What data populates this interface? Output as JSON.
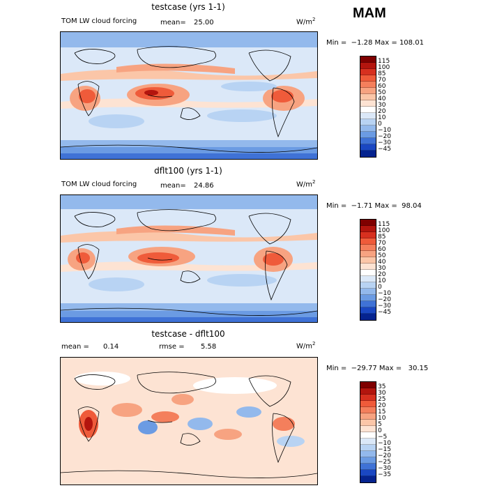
{
  "season": "MAM",
  "panels": [
    {
      "title": "testcase (yrs 1-1)",
      "var_label": "TOM LW cloud forcing",
      "stat1_label": "mean=",
      "stat1_value": "25.00",
      "units": "W/m",
      "units_exp": "2",
      "min_label": "Min =",
      "min_value": "−1.28",
      "max_label": "Max =",
      "max_value": "108.01",
      "colorbar_levels": [
        "115",
        "100",
        "85",
        "70",
        "60",
        "50",
        "40",
        "30",
        "20",
        "10",
        "0",
        "−10",
        "−20",
        "−30",
        "−45"
      ],
      "colorbar_colors": [
        "#7f0000",
        "#b3150e",
        "#d7301f",
        "#ef5b3a",
        "#f47f5c",
        "#f7a381",
        "#fbc6a8",
        "#fde3d3",
        "#ffffff",
        "#dbe8f8",
        "#b8d3f3",
        "#93b9ec",
        "#6b9be3",
        "#3f72d6",
        "#1a47c2",
        "#05238f"
      ]
    },
    {
      "title": "dflt100 (yrs 1-1)",
      "var_label": "TOM LW cloud forcing",
      "stat1_label": "mean=",
      "stat1_value": "24.86",
      "units": "W/m",
      "units_exp": "2",
      "min_label": "Min =",
      "min_value": "−1.71",
      "max_label": "Max =",
      "max_value": "98.04",
      "colorbar_levels": [
        "115",
        "100",
        "85",
        "70",
        "60",
        "50",
        "40",
        "30",
        "20",
        "10",
        "0",
        "−10",
        "−20",
        "−30",
        "−45"
      ],
      "colorbar_colors": [
        "#7f0000",
        "#b3150e",
        "#d7301f",
        "#ef5b3a",
        "#f47f5c",
        "#f7a381",
        "#fbc6a8",
        "#fde3d3",
        "#ffffff",
        "#dbe8f8",
        "#b8d3f3",
        "#93b9ec",
        "#6b9be3",
        "#3f72d6",
        "#1a47c2",
        "#05238f"
      ]
    },
    {
      "title": "testcase - dflt100",
      "stat1_label": "mean =",
      "stat1_value": "0.14",
      "stat2_label": "rmse =",
      "stat2_value": "5.58",
      "units": "W/m",
      "units_exp": "2",
      "min_label": "Min =",
      "min_value": "−29.77",
      "max_label": "Max =",
      "max_value": "30.15",
      "colorbar_levels": [
        "35",
        "30",
        "25",
        "20",
        "15",
        "10",
        "5",
        "0",
        "−5",
        "−10",
        "−15",
        "−20",
        "−25",
        "−30",
        "−35"
      ],
      "colorbar_colors": [
        "#7f0000",
        "#b3150e",
        "#d7301f",
        "#ef5b3a",
        "#f47f5c",
        "#f7a381",
        "#fbc6a8",
        "#fde3d3",
        "#ffffff",
        "#dbe8f8",
        "#b8d3f3",
        "#93b9ec",
        "#6b9be3",
        "#3f72d6",
        "#1a47c2",
        "#05238f"
      ]
    }
  ],
  "chart_data": [
    {
      "type": "heatmap",
      "title": "testcase (yrs 1-1)",
      "field": "TOM LW cloud forcing",
      "units": "W/m2",
      "mean": 25.0,
      "min": -1.28,
      "max": 108.01
    },
    {
      "type": "heatmap",
      "title": "dflt100 (yrs 1-1)",
      "field": "TOM LW cloud forcing",
      "units": "W/m2",
      "mean": 24.86,
      "min": -1.71,
      "max": 98.04
    },
    {
      "type": "heatmap",
      "title": "testcase - dflt100",
      "units": "W/m2",
      "mean": 0.14,
      "rmse": 5.58,
      "min": -29.77,
      "max": 30.15
    }
  ]
}
